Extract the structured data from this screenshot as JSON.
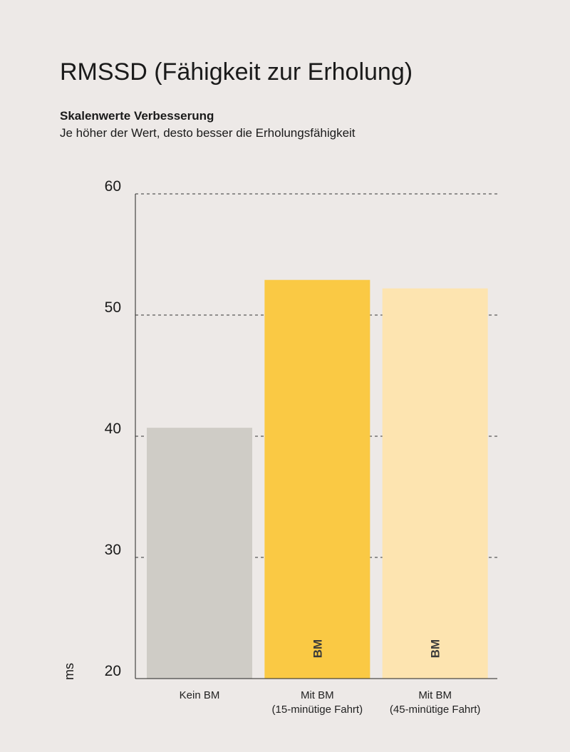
{
  "chart_data": {
    "type": "bar",
    "title": "RMSSD (Fähigkeit zur Erholung)",
    "subtitle": "Skalenwerte Verbesserung",
    "description": "Je höher der Wert, desto besser die Erholungsfähigkeit",
    "y_label": "ms",
    "categories": [
      "Kein BM",
      "Mit BM\n(15-minütige Fahrt)",
      "Mit BM\n(45-minütige Fahrt)"
    ],
    "values": [
      40.7,
      52.9,
      52.2
    ],
    "colors": [
      "#cfccc6",
      "#fac944",
      "#fde4b0"
    ],
    "bar_labels": [
      null,
      "BM",
      "BM"
    ],
    "ylim": [
      20,
      60
    ],
    "yticks": [
      20,
      30,
      40,
      50,
      60
    ],
    "grid": true
  }
}
